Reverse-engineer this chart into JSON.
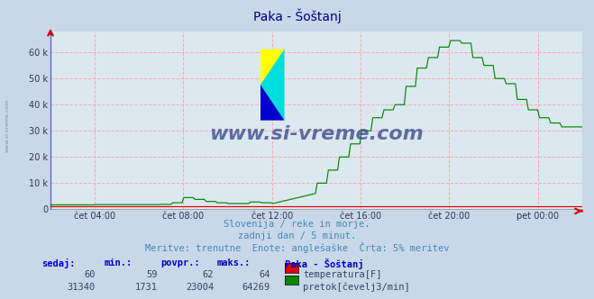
{
  "title": "Paka - Šoštanj",
  "background_color": "#c8d8e8",
  "plot_background": "#dce8f0",
  "grid_color_h": "#ff9999",
  "grid_color_v": "#ffb0b0",
  "title_color": "#000080",
  "text_color": "#4488bb",
  "axis_color": "#4444cc",
  "x_labels": [
    "čet 04:00",
    "čet 08:00",
    "čet 12:00",
    "čet 16:00",
    "čet 20:00",
    "pet 00:00"
  ],
  "y_ticks": [
    0,
    10000,
    20000,
    30000,
    40000,
    50000,
    60000
  ],
  "y_tick_labels": [
    "0",
    "10 k",
    "20 k",
    "30 k",
    "40 k",
    "50 k",
    "60 k"
  ],
  "ylim": [
    0,
    68000
  ],
  "flow_color": "#008800",
  "temp_color": "#dd0000",
  "watermark_text": "www.si-vreme.com",
  "watermark_color": "#334488",
  "subtitle1": "Slovenija / reke in morje.",
  "subtitle2": "zadnji dan / 5 minut.",
  "subtitle3": "Meritve: trenutne  Enote: anglešaške  Črta: 5% meritev",
  "legend_title": "Paka - Šoštanj",
  "legend_rows": [
    {
      "sedaj": "60",
      "min": "59",
      "povpr": "62",
      "maks": "64",
      "color": "#dd0000",
      "label": "temperatura[F]"
    },
    {
      "sedaj": "31340",
      "min": "1731",
      "povpr": "23004",
      "maks": "64269",
      "color": "#008800",
      "label": "pretok[čevelj3/min]"
    }
  ]
}
